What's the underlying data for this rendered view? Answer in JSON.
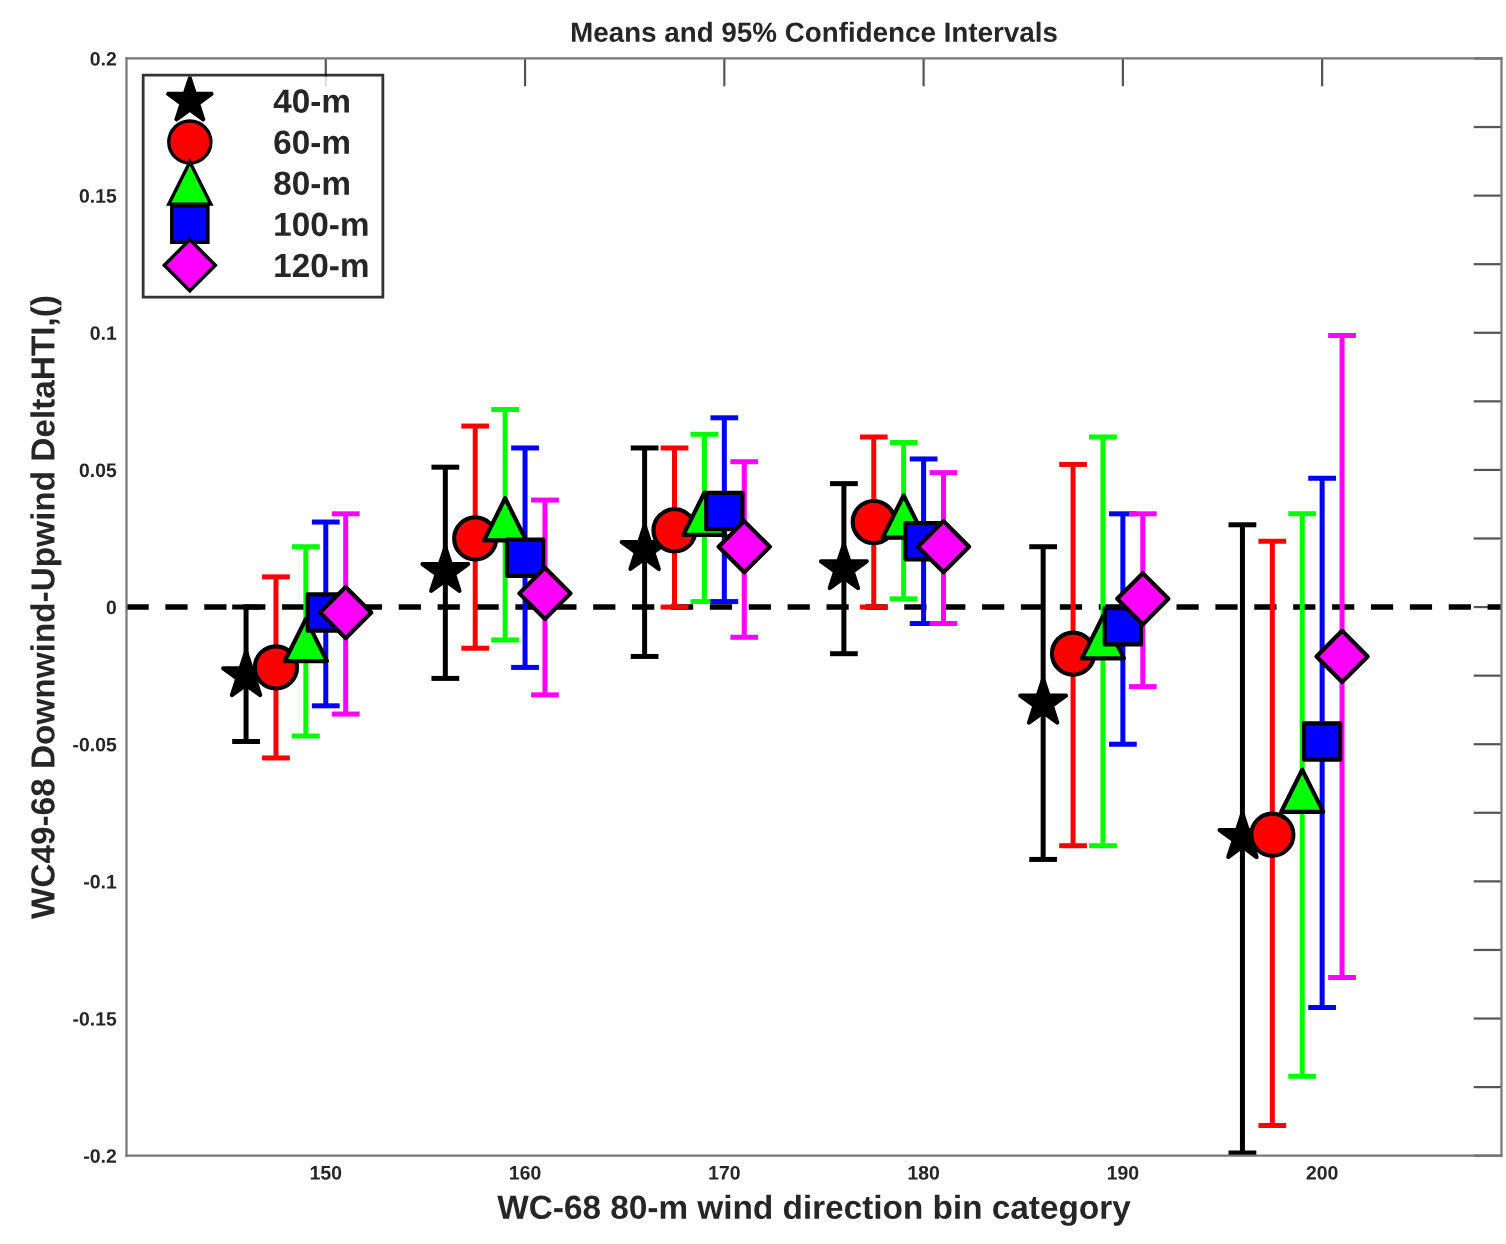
{
  "chart_data": {
    "type": "scatter",
    "title": "Means and 95% Confidence Intervals",
    "xlabel": "WC-68 80-m wind direction bin category",
    "ylabel": "WC49-68 Downwind-Upwind DeltaHTI,()",
    "xlim": [
      140,
      209
    ],
    "xticks": [
      150,
      160,
      170,
      180,
      190,
      200
    ],
    "ylim": [
      -0.2,
      0.2
    ],
    "yticks": [
      {
        "value": -0.2,
        "label": "-0.2"
      },
      {
        "value": -0.175,
        "label": null
      },
      {
        "value": -0.15,
        "label": "-0.15"
      },
      {
        "value": -0.125,
        "label": null
      },
      {
        "value": -0.1,
        "label": "-0.1"
      },
      {
        "value": -0.075,
        "label": null
      },
      {
        "value": -0.05,
        "label": "-0.05"
      },
      {
        "value": -0.025,
        "label": null
      },
      0,
      {
        "value": 0.025,
        "label": null
      },
      0.05,
      {
        "value": 0.075,
        "label": null
      },
      0.1,
      {
        "value": 0.125,
        "label": null
      },
      0.15,
      {
        "value": 0.175,
        "label": null
      },
      0.2
    ],
    "legend": "top left",
    "grid": false,
    "ref_lines": [
      {
        "axis": "y",
        "value": 0,
        "color": "#000000",
        "line_style": "dashed"
      }
    ],
    "series": [
      {
        "name": "40-m",
        "color": "#000000",
        "marker": "star",
        "x": [
          146,
          156,
          166,
          176,
          186,
          196
        ],
        "values": [
          -0.025,
          0.013,
          0.021,
          0.014,
          -0.035,
          -0.084
        ],
        "errors": [
          [
            -0.049,
            0.0
          ],
          [
            -0.026,
            0.051
          ],
          [
            -0.018,
            0.058
          ],
          [
            -0.017,
            0.045
          ],
          [
            -0.092,
            0.022
          ],
          [
            -0.199,
            0.03
          ]
        ]
      },
      {
        "name": "60-m",
        "color": "#ff0000",
        "marker": "circle",
        "x": [
          147.5,
          157.5,
          167.5,
          177.5,
          187.5,
          197.5
        ],
        "values": [
          -0.022,
          0.025,
          0.028,
          0.031,
          -0.017,
          -0.083
        ],
        "errors": [
          [
            -0.055,
            0.011
          ],
          [
            -0.015,
            0.066
          ],
          [
            0.0,
            0.058
          ],
          [
            0.0,
            0.062
          ],
          [
            -0.087,
            0.052
          ],
          [
            -0.189,
            0.024
          ]
        ]
      },
      {
        "name": "80-m",
        "color": "#00ff00",
        "marker": "triangle",
        "x": [
          149,
          159,
          169,
          179,
          189,
          199
        ],
        "values": [
          -0.012,
          0.032,
          0.034,
          0.033,
          -0.011,
          -0.067
        ],
        "errors": [
          [
            -0.047,
            0.022
          ],
          [
            -0.012,
            0.072
          ],
          [
            0.002,
            0.063
          ],
          [
            0.003,
            0.06
          ],
          [
            -0.087,
            0.062
          ],
          [
            -0.171,
            0.034
          ]
        ]
      },
      {
        "name": "100-m",
        "color": "#0000ff",
        "marker": "square",
        "x": [
          150,
          160,
          170,
          180,
          190,
          200
        ],
        "values": [
          -0.002,
          0.018,
          0.035,
          0.024,
          -0.007,
          -0.049
        ],
        "errors": [
          [
            -0.036,
            0.031
          ],
          [
            -0.022,
            0.058
          ],
          [
            0.002,
            0.069
          ],
          [
            -0.006,
            0.054
          ],
          [
            -0.05,
            0.034
          ],
          [
            -0.146,
            0.047
          ]
        ]
      },
      {
        "name": "120-m",
        "color": "#ff00ff",
        "marker": "diamond",
        "x": [
          151,
          161,
          171,
          181,
          191,
          201
        ],
        "values": [
          -0.002,
          0.005,
          0.022,
          0.022,
          0.003,
          -0.018
        ],
        "errors": [
          [
            -0.039,
            0.034
          ],
          [
            -0.032,
            0.039
          ],
          [
            -0.011,
            0.053
          ],
          [
            -0.006,
            0.049
          ],
          [
            -0.029,
            0.034
          ],
          [
            -0.135,
            0.099
          ]
        ]
      }
    ]
  }
}
